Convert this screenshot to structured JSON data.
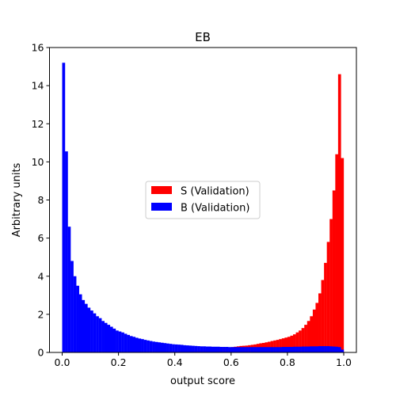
{
  "chart_data": {
    "type": "bar",
    "title": "EB",
    "xlabel": "output score",
    "ylabel": "Arbitrary units",
    "xlim": [
      -0.045,
      1.045
    ],
    "ylim": [
      0,
      16
    ],
    "xticks": [
      "0.0",
      "0.2",
      "0.4",
      "0.6",
      "0.8",
      "1.0"
    ],
    "xtick_values": [
      0.0,
      0.2,
      0.4,
      0.6,
      0.8,
      1.0
    ],
    "yticks": [
      "0",
      "2",
      "4",
      "6",
      "8",
      "10",
      "12",
      "14",
      "16"
    ],
    "ytick_values": [
      0,
      2,
      4,
      6,
      8,
      10,
      12,
      14,
      16
    ],
    "bin_range": [
      0.0,
      1.0
    ],
    "bin_count": 100,
    "grid": false,
    "legend_position": "center",
    "series": [
      {
        "name": "S (Validation)",
        "color": "#ff0000",
        "values": [
          0.01,
          0.01,
          0.01,
          0.01,
          0.01,
          0.01,
          0.01,
          0.01,
          0.01,
          0.01,
          0.01,
          0.01,
          0.01,
          0.01,
          0.01,
          0.01,
          0.01,
          0.01,
          0.01,
          0.01,
          0.01,
          0.01,
          0.01,
          0.01,
          0.01,
          0.01,
          0.01,
          0.01,
          0.01,
          0.01,
          0.02,
          0.02,
          0.02,
          0.02,
          0.02,
          0.02,
          0.02,
          0.03,
          0.03,
          0.03,
          0.04,
          0.04,
          0.05,
          0.06,
          0.07,
          0.08,
          0.09,
          0.1,
          0.11,
          0.12,
          0.13,
          0.14,
          0.16,
          0.18,
          0.2,
          0.22,
          0.24,
          0.25,
          0.26,
          0.27,
          0.28,
          0.3,
          0.32,
          0.34,
          0.35,
          0.36,
          0.38,
          0.4,
          0.42,
          0.45,
          0.48,
          0.5,
          0.53,
          0.56,
          0.6,
          0.63,
          0.66,
          0.7,
          0.74,
          0.78,
          0.82,
          0.88,
          0.95,
          1.05,
          1.15,
          1.28,
          1.45,
          1.65,
          1.9,
          2.25,
          2.6,
          3.1,
          3.8,
          4.7,
          5.8,
          7.0,
          8.5,
          10.4,
          14.6,
          10.2
        ]
      },
      {
        "name": "B (Validation)",
        "color": "#0000ff",
        "values": [
          15.2,
          10.55,
          6.6,
          4.8,
          4.0,
          3.5,
          3.05,
          2.75,
          2.55,
          2.35,
          2.2,
          2.05,
          1.9,
          1.8,
          1.65,
          1.55,
          1.45,
          1.35,
          1.25,
          1.15,
          1.1,
          1.05,
          0.98,
          0.92,
          0.86,
          0.82,
          0.77,
          0.73,
          0.7,
          0.66,
          0.63,
          0.6,
          0.57,
          0.55,
          0.53,
          0.51,
          0.49,
          0.47,
          0.45,
          0.43,
          0.42,
          0.41,
          0.4,
          0.38,
          0.37,
          0.36,
          0.35,
          0.34,
          0.33,
          0.32,
          0.32,
          0.31,
          0.31,
          0.3,
          0.3,
          0.3,
          0.29,
          0.29,
          0.29,
          0.28,
          0.28,
          0.28,
          0.28,
          0.28,
          0.28,
          0.28,
          0.28,
          0.28,
          0.28,
          0.28,
          0.28,
          0.28,
          0.28,
          0.28,
          0.28,
          0.28,
          0.28,
          0.28,
          0.29,
          0.29,
          0.29,
          0.29,
          0.3,
          0.3,
          0.3,
          0.31,
          0.31,
          0.31,
          0.32,
          0.32,
          0.32,
          0.33,
          0.33,
          0.33,
          0.33,
          0.32,
          0.31,
          0.3,
          0.28,
          0.15
        ]
      }
    ]
  }
}
